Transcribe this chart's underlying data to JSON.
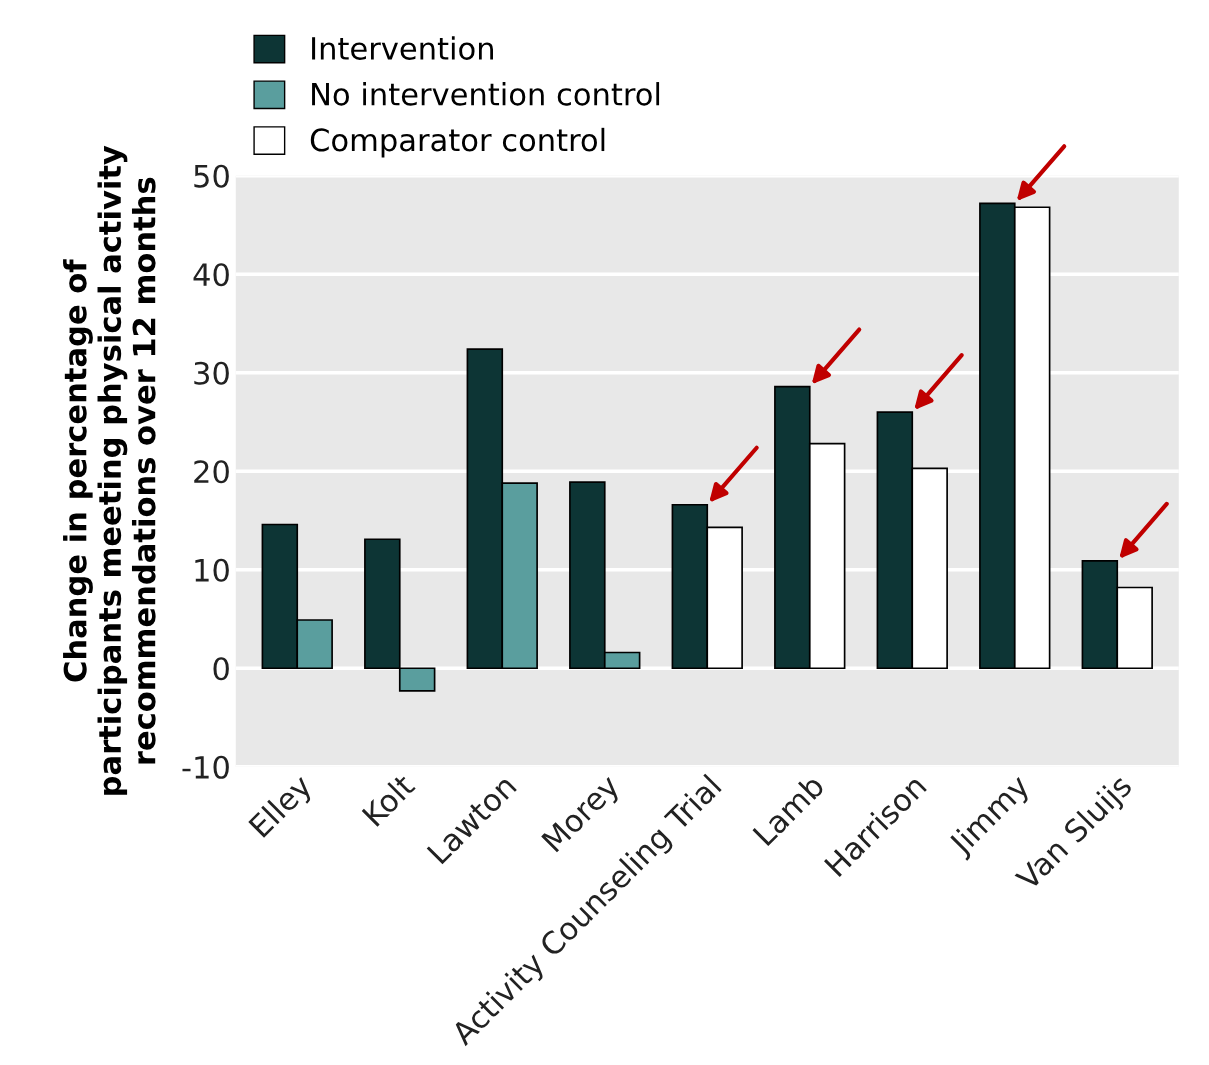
{
  "chart_data": {
    "type": "bar",
    "ylabel": "Change in percentage of\nparticipants meeting physical activity\nrecommendations over 12 months",
    "categories": [
      "Elley",
      "Kolt",
      "Lawton",
      "Morey",
      "Activity Counseling Trial",
      "Lamb",
      "Harrison",
      "Jimmy",
      "Van Sluijs"
    ],
    "series": [
      {
        "name": "Intervention",
        "color": "#0d3535",
        "values": [
          14.6,
          13.1,
          32.4,
          18.9,
          16.6,
          28.6,
          26.0,
          47.2,
          10.9
        ]
      },
      {
        "name": "No intervention control",
        "color": "#5a9e9e",
        "values": [
          4.9,
          -2.3,
          18.8,
          1.6,
          null,
          null,
          null,
          null,
          null
        ]
      },
      {
        "name": "Comparator control",
        "color": "#ffffff",
        "values": [
          null,
          null,
          null,
          null,
          14.3,
          22.8,
          20.3,
          46.8,
          8.2
        ]
      }
    ],
    "ylim": [
      -10,
      50
    ],
    "yticks": [
      -10,
      0,
      10,
      20,
      30,
      40,
      50
    ],
    "grid": "y",
    "legend": "top left"
  }
}
